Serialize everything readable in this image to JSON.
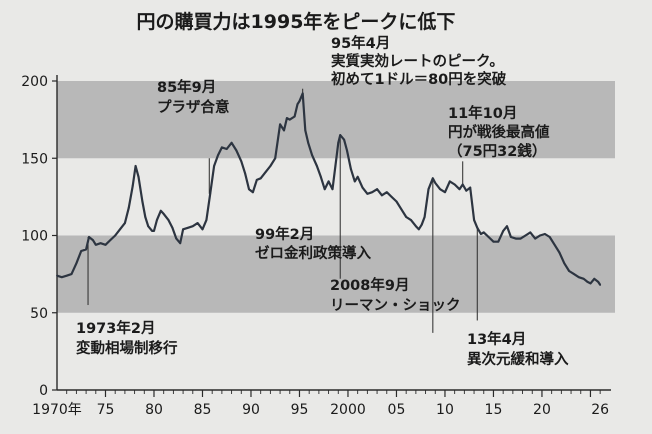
{
  "chart_data": {
    "type": "line",
    "title": "円の購買力は1995年をピークに低下",
    "xlabel": "",
    "ylabel": "",
    "xlim": [
      1970,
      2026.5
    ],
    "ylim": [
      0,
      200
    ],
    "y_ticks": [
      0,
      50,
      100,
      150,
      200
    ],
    "x_ticks": [
      {
        "year": 1970,
        "label": "1970年"
      },
      {
        "year": 1975,
        "label": "75"
      },
      {
        "year": 1980,
        "label": "80"
      },
      {
        "year": 1985,
        "label": "85"
      },
      {
        "year": 1990,
        "label": "90"
      },
      {
        "year": 1995,
        "label": "95"
      },
      {
        "year": 2000,
        "label": "2000"
      },
      {
        "year": 2005,
        "label": "05"
      },
      {
        "year": 2010,
        "label": "10"
      },
      {
        "year": 2015,
        "label": "15"
      },
      {
        "year": 2020,
        "label": "20"
      },
      {
        "year": 2026,
        "label": "26"
      }
    ],
    "bands": [
      [
        50,
        100
      ],
      [
        150,
        200
      ]
    ],
    "grid": false,
    "colors": {
      "line": "#2d3541",
      "band": "#b8b8b8",
      "axis": "#2a2a2a"
    },
    "series": [
      {
        "x": [
          1970.0,
          1970.5,
          1971.0,
          1971.5,
          1972.0,
          1972.5,
          1973.0,
          1973.3,
          1973.7,
          1974.0,
          1974.5,
          1975.0,
          1975.5,
          1976.0,
          1976.5,
          1977.0,
          1977.4,
          1977.8,
          1978.1,
          1978.4,
          1978.8,
          1979.1,
          1979.4,
          1979.8,
          1980.0,
          1980.3,
          1980.7,
          1981.0,
          1981.5,
          1981.9,
          1982.3,
          1982.7,
          1983.0,
          1983.5,
          1984.0,
          1984.5,
          1985.0,
          1985.4,
          1985.8,
          1986.2,
          1986.6,
          1987.0,
          1987.5,
          1988.0,
          1988.5,
          1989.0,
          1989.4,
          1989.8,
          1990.2,
          1990.6,
          1991.0,
          1991.5,
          1992.0,
          1992.5,
          1993.0,
          1993.4,
          1993.7,
          1994.0,
          1994.5,
          1994.8,
          1995.0,
          1995.33,
          1995.6,
          1995.9,
          1996.3,
          1996.8,
          1997.2,
          1997.6,
          1998.0,
          1998.4,
          1998.7,
          1999.0,
          1999.2,
          1999.6,
          1999.9,
          2000.3,
          2000.7,
          2001.0,
          2001.5,
          2002.0,
          2002.5,
          2003.0,
          2003.5,
          2004.0,
          2004.5,
          2005.0,
          2005.5,
          2006.0,
          2006.5,
          2007.0,
          2007.3,
          2007.6,
          2007.9,
          2008.3,
          2008.75,
          2009.0,
          2009.5,
          2010.0,
          2010.5,
          2011.0,
          2011.5,
          2011.83,
          2012.2,
          2012.6,
          2013.0,
          2013.33,
          2013.7,
          2014.0,
          2014.5,
          2015.0,
          2015.5,
          2016.0,
          2016.4,
          2016.8,
          2017.3,
          2017.8,
          2018.3,
          2018.8,
          2019.3,
          2019.8,
          2020.3,
          2020.8,
          2021.3,
          2021.8,
          2022.3,
          2022.8,
          2023.3,
          2023.8,
          2024.3,
          2024.7,
          2025.0,
          2025.4,
          2025.8,
          2026.0
        ],
        "y": [
          74,
          73,
          74,
          75,
          82,
          90,
          91,
          99,
          97,
          94,
          95,
          94,
          97,
          100,
          104,
          108,
          118,
          132,
          145,
          138,
          122,
          112,
          106,
          103,
          103,
          110,
          116,
          114,
          110,
          105,
          98,
          95,
          104,
          105,
          106,
          108,
          104,
          110,
          127,
          145,
          152,
          157,
          156,
          160,
          155,
          148,
          140,
          130,
          128,
          136,
          137,
          141,
          145,
          150,
          172,
          168,
          176,
          175,
          177,
          185,
          187,
          192,
          168,
          160,
          152,
          145,
          138,
          130,
          135,
          130,
          145,
          160,
          165,
          162,
          155,
          143,
          135,
          138,
          131,
          127,
          128,
          130,
          126,
          128,
          125,
          122,
          117,
          112,
          110,
          106,
          104,
          107,
          112,
          130,
          137,
          134,
          130,
          128,
          135,
          133,
          130,
          133,
          129,
          131,
          110,
          105,
          101,
          102,
          99,
          96,
          96,
          103,
          106,
          99,
          98,
          98,
          100,
          102,
          98,
          100,
          101,
          99,
          94,
          89,
          82,
          77,
          75,
          73,
          72,
          70,
          69,
          72,
          70,
          68
        ]
      }
    ],
    "annotations": [
      {
        "year": 1973.2,
        "line_to": 55,
        "lines": [
          "1973年2月",
          "変動相場制移行"
        ]
      },
      {
        "year": 1985.7,
        "line_to": 150,
        "lines": [
          "85年9月",
          "プラザ合意"
        ]
      },
      {
        "year": 1995.33,
        "line_to": 195,
        "lines": [
          "95年4月",
          "実質実効レートのピーク。",
          "初めて1ドル＝80円を突破"
        ]
      },
      {
        "year": 1999.2,
        "line_to": 72,
        "lines": [
          "99年2月",
          "ゼロ金利政策導入"
        ]
      },
      {
        "year": 2008.75,
        "line_to": 37,
        "lines": [
          "2008年9月",
          "リーマン・ショック"
        ]
      },
      {
        "year": 2011.83,
        "line_to": 148,
        "lines": [
          "11年10月",
          "円が戦後最高値",
          "（75円32銭）"
        ]
      },
      {
        "year": 2013.33,
        "line_to": 45,
        "lines": [
          "13年4月",
          "異次元緩和導入"
        ]
      }
    ]
  }
}
